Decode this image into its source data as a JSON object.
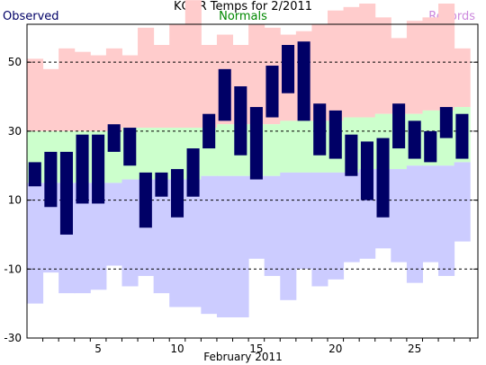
{
  "chart_data": {
    "type": "bar",
    "title": "KGRR Temps for 2/2011",
    "xlabel": "February 2011",
    "ylabel": "",
    "legend": [
      {
        "name": "Observed",
        "color": "#000066"
      },
      {
        "name": "Normals",
        "color": "#008800"
      },
      {
        "name": "Records",
        "color": "#cc88dd"
      }
    ],
    "x": [
      1,
      2,
      3,
      4,
      5,
      6,
      7,
      8,
      9,
      10,
      11,
      12,
      13,
      14,
      15,
      16,
      17,
      18,
      19,
      20,
      21,
      22,
      23,
      24,
      25,
      26,
      27,
      28
    ],
    "xticks": [
      5,
      10,
      15,
      20,
      25
    ],
    "yticks": [
      -30,
      -10,
      10,
      30,
      50
    ],
    "grid_y": [
      -10,
      10,
      30,
      50
    ],
    "xlim": [
      0,
      28.5
    ],
    "ylim": [
      -30,
      61
    ],
    "colors": {
      "observed": "#000066",
      "normal": "#ccffcc",
      "record_high": "#ffcccc",
      "record_low": "#ccccff",
      "axis": "#000000",
      "grid": "#000000"
    },
    "series": [
      {
        "name": "Observed",
        "kind": "range",
        "high": [
          21,
          24,
          24,
          29,
          29,
          32,
          31,
          18,
          18,
          19,
          25,
          35,
          48,
          43,
          37,
          49,
          55,
          56,
          38,
          36,
          29,
          27,
          28,
          38,
          33,
          30,
          37,
          35
        ],
        "low": [
          14,
          8,
          0,
          9,
          9,
          24,
          20,
          2,
          11,
          5,
          11,
          25,
          33,
          23,
          16,
          34,
          41,
          33,
          23,
          22,
          17,
          10,
          5,
          25,
          22,
          21,
          28,
          22
        ]
      },
      {
        "name": "Normals",
        "kind": "range",
        "high": [
          30,
          30,
          30,
          30,
          30,
          30,
          31,
          31,
          31,
          31,
          31,
          31,
          32,
          32,
          32,
          32,
          33,
          33,
          33,
          33,
          34,
          34,
          35,
          35,
          35,
          36,
          36,
          37
        ],
        "low": [
          15,
          15,
          15,
          15,
          15,
          15,
          16,
          16,
          16,
          16,
          16,
          17,
          17,
          17,
          17,
          17,
          18,
          18,
          18,
          18,
          18,
          19,
          19,
          19,
          20,
          20,
          20,
          21
        ]
      },
      {
        "name": "Records",
        "kind": "range",
        "high": [
          51,
          48,
          54,
          53,
          52,
          54,
          52,
          60,
          55,
          61,
          68,
          55,
          58,
          55,
          61,
          60,
          58,
          59,
          61,
          65,
          66,
          67,
          63,
          57,
          62,
          63,
          67,
          54
        ],
        "low": [
          -20,
          -11,
          -17,
          -17,
          -16,
          -9,
          -15,
          -12,
          -17,
          -21,
          -21,
          -23,
          -24,
          -24,
          -7,
          -12,
          -19,
          -10,
          -15,
          -13,
          -8,
          -7,
          -4,
          -8,
          -14,
          -8,
          -12,
          -2
        ]
      }
    ]
  }
}
